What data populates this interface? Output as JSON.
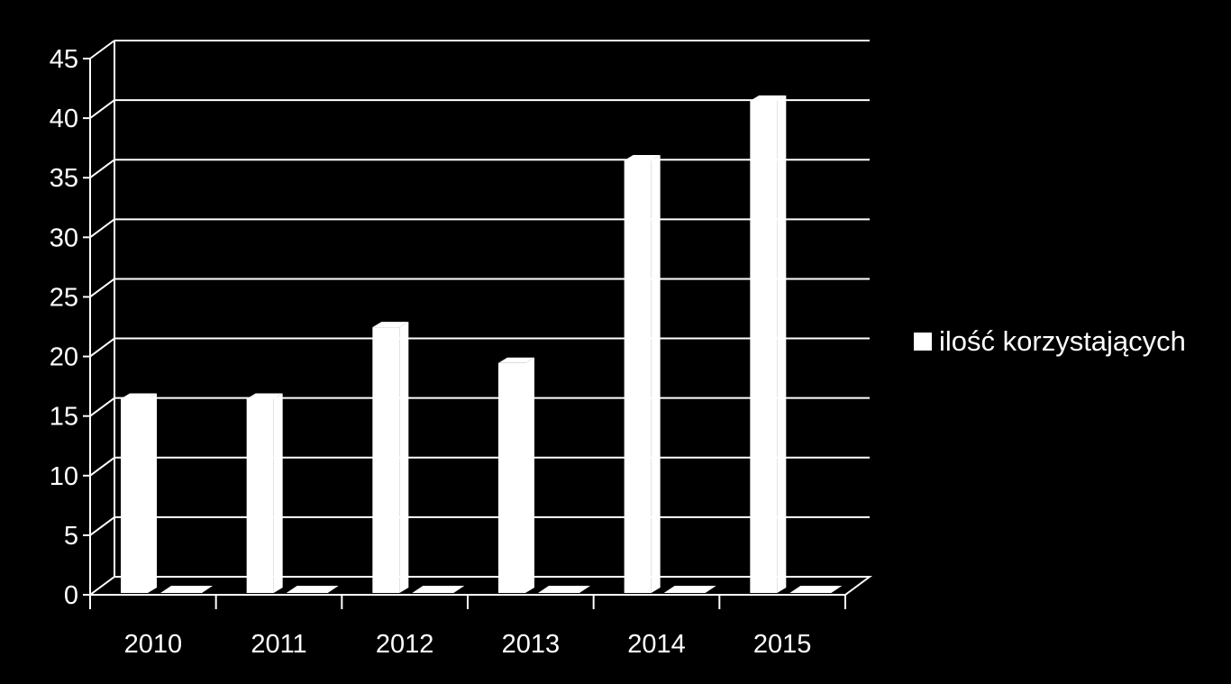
{
  "chart_data": {
    "type": "bar",
    "style": "3d-clustered-column",
    "categories": [
      "2010",
      "2011",
      "2012",
      "2013",
      "2014",
      "2015"
    ],
    "series": [
      {
        "name": "ilość korzystających",
        "values": [
          16,
          16,
          22,
          19,
          36,
          41
        ],
        "color": "#ffffff"
      },
      {
        "values": [
          0,
          0,
          0,
          0,
          0,
          0
        ],
        "color": "#ffffff"
      }
    ],
    "y_ticks": [
      "0",
      "5",
      "10",
      "15",
      "20",
      "25",
      "30",
      "35",
      "40",
      "45"
    ],
    "ylim": [
      0,
      45
    ],
    "grid": true,
    "legend_position": "right",
    "legend_entries": [
      "ilość korzystających"
    ],
    "colors": {
      "background": "#000000",
      "bars": "#ffffff",
      "axes": "#ffffff",
      "gridlines": "#ffffff",
      "text": "#ffffff"
    }
  }
}
